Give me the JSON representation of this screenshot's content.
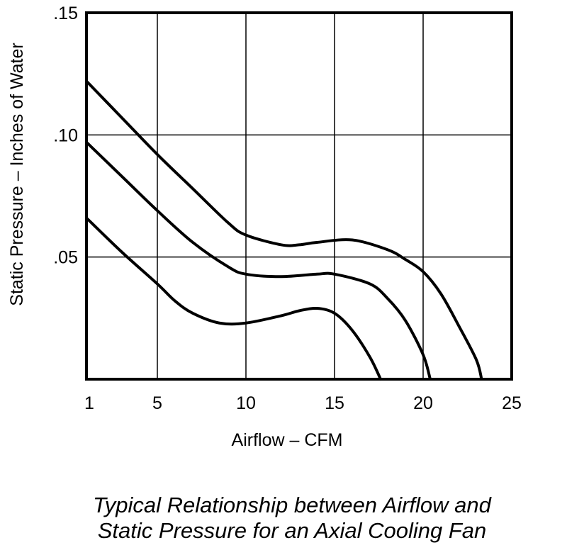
{
  "chart_data": {
    "type": "line",
    "title_lines": [
      "Typical Relationship between Airflow and",
      "Static Pressure for an Axial Cooling Fan"
    ],
    "xlabel": "Airflow – CFM",
    "ylabel": "Static Pressure – Inches of Water",
    "xlim": [
      1,
      25
    ],
    "ylim": [
      0,
      0.15
    ],
    "x_ticks": [
      {
        "value": 1,
        "label": "1"
      },
      {
        "value": 5,
        "label": "5"
      },
      {
        "value": 10,
        "label": "10"
      },
      {
        "value": 15,
        "label": "15"
      },
      {
        "value": 20,
        "label": "20"
      },
      {
        "value": 25,
        "label": "25"
      }
    ],
    "y_ticks": [
      {
        "value": 0.05,
        "label": ".05"
      },
      {
        "value": 0.1,
        "label": ".10"
      },
      {
        "value": 0.15,
        "label": ".15"
      }
    ],
    "grid": true,
    "legend": "none",
    "line_color": "#000000",
    "series": [
      {
        "points": [
          [
            1,
            0.122
          ],
          [
            3,
            0.107
          ],
          [
            5,
            0.092
          ],
          [
            7,
            0.078
          ],
          [
            9,
            0.064
          ],
          [
            10,
            0.059
          ],
          [
            12,
            0.055
          ],
          [
            13,
            0.055
          ],
          [
            14,
            0.056
          ],
          [
            16,
            0.057
          ],
          [
            18,
            0.053
          ],
          [
            19,
            0.049
          ],
          [
            20,
            0.044
          ],
          [
            21,
            0.035
          ],
          [
            22,
            0.022
          ],
          [
            23,
            0.008
          ],
          [
            23.3,
            0
          ]
        ]
      },
      {
        "points": [
          [
            1,
            0.097
          ],
          [
            3,
            0.083
          ],
          [
            5,
            0.069
          ],
          [
            7,
            0.056
          ],
          [
            9,
            0.046
          ],
          [
            10,
            0.043
          ],
          [
            12,
            0.042
          ],
          [
            14,
            0.043
          ],
          [
            15,
            0.043
          ],
          [
            17,
            0.039
          ],
          [
            18,
            0.033
          ],
          [
            19,
            0.024
          ],
          [
            20,
            0.01
          ],
          [
            20.4,
            0
          ]
        ]
      },
      {
        "points": [
          [
            1,
            0.066
          ],
          [
            3,
            0.052
          ],
          [
            5,
            0.039
          ],
          [
            6,
            0.032
          ],
          [
            7,
            0.027
          ],
          [
            8.5,
            0.023
          ],
          [
            10,
            0.023
          ],
          [
            12,
            0.026
          ],
          [
            13,
            0.028
          ],
          [
            14,
            0.029
          ],
          [
            15,
            0.027
          ],
          [
            16,
            0.02
          ],
          [
            17,
            0.009
          ],
          [
            17.6,
            0
          ]
        ]
      }
    ]
  }
}
